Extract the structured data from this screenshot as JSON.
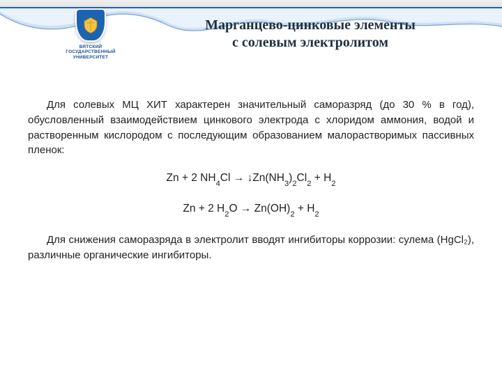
{
  "header": {
    "university_line1": "ВЯТСКИЙ",
    "university_line2": "ГОСУДАРСТВЕННЫЙ",
    "university_line3": "УНИВЕРСИТЕТ"
  },
  "title": {
    "line1": "Марганцево-цинковые элементы",
    "line2": "с солевым электролитом"
  },
  "paragraphs": {
    "p1": "Для солевых МЦ ХИТ характерен значительный саморазряд (до 30 % в год), обусловленный взаимодействием цинкового электрода с хлоридом аммония, водой и растворенным кислородом с последующим образованием малорастворимых пассивных пленок:",
    "p2": "Для снижения саморазряда в электролит вводят ингибиторы коррозии: сулема (HgCl₂), различные органические ингибиторы."
  },
  "equations": {
    "eq1_html": "Zn + 2 NH<sub>4</sub>Cl → ↓Zn(NH<sub>3</sub>)<sub>2</sub>Cl<sub>2</sub> + H<sub>2</sub>",
    "eq2_html": "Zn + 2 H<sub>2</sub>O → Zn(OH)<sub>2</sub> + H<sub>2</sub>"
  },
  "colors": {
    "accent_blue": "#1e63b0",
    "title_color": "#203040",
    "body_color": "#222222",
    "wave_light": "#eaf2fb",
    "wave_mid": "#cfe1f5",
    "wave_shadow": "#bcd1ea",
    "shield_gold": "#f6c245"
  }
}
